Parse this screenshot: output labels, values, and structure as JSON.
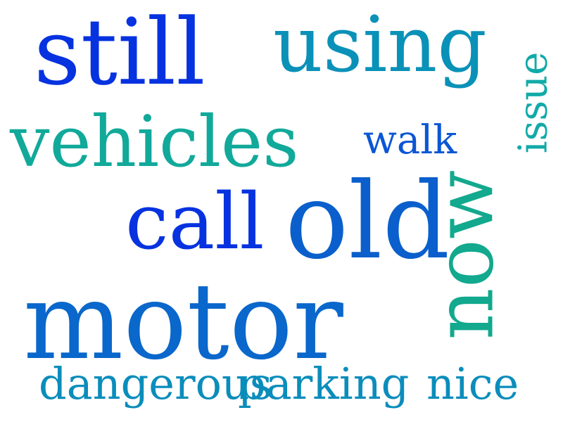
{
  "words": {
    "still": {
      "text": "still",
      "color": "#0632e0"
    },
    "using": {
      "text": "using",
      "color": "#0a91b8"
    },
    "vehicles": {
      "text": "vehicles",
      "color": "#11a99a"
    },
    "walk": {
      "text": "walk",
      "color": "#0b56d4"
    },
    "issue": {
      "text": "issue",
      "color": "#11aaa8"
    },
    "call": {
      "text": "call",
      "color": "#0632e0"
    },
    "old": {
      "text": "old",
      "color": "#0a5fcc"
    },
    "now": {
      "text": "now",
      "color": "#12a98e"
    },
    "motor": {
      "text": "motor",
      "color": "#0a67cb"
    },
    "dangerous": {
      "text": "dangerous",
      "color": "#0b8dbb"
    },
    "parking": {
      "text": "parking",
      "color": "#0b8dbb"
    },
    "nice": {
      "text": "nice",
      "color": "#0b8dbb"
    }
  }
}
